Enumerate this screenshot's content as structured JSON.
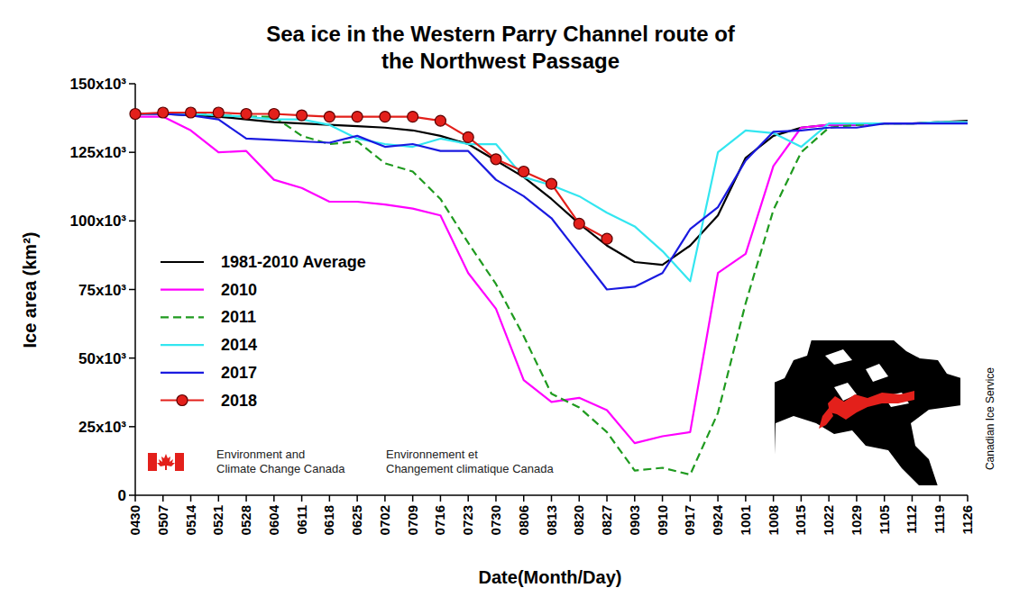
{
  "chart_data": {
    "type": "line",
    "title": "Sea ice in the Western Parry Channel route of\nthe Northwest Passage",
    "x_label": "Date(Month/Day)",
    "y_label": "Ice area (km²)",
    "categories": [
      "0430",
      "0507",
      "0514",
      "0521",
      "0528",
      "0604",
      "0611",
      "0618",
      "0625",
      "0702",
      "0709",
      "0716",
      "0723",
      "0730",
      "0806",
      "0813",
      "0820",
      "0827",
      "0903",
      "0910",
      "0917",
      "0924",
      "1001",
      "1008",
      "1015",
      "1022",
      "1029",
      "1105",
      "1112",
      "1119",
      "1126"
    ],
    "ylim": [
      0,
      150000
    ],
    "yticks": [
      0,
      {
        "value": 25000,
        "label": "25x10³"
      },
      {
        "value": 50000,
        "label": "50x10³"
      },
      {
        "value": 75000,
        "label": "75x10³"
      },
      {
        "value": 100000,
        "label": "100x10³"
      },
      {
        "value": 125000,
        "label": "125x10³"
      },
      {
        "value": 150000,
        "label": "150x10³"
      }
    ],
    "grid": false,
    "legend": "left",
    "annotations": [
      "Environment and\nClimate Change Canada",
      "Environnement et\nChangement climatique Canada",
      "Canadian Ice Service"
    ],
    "series": [
      {
        "name": "1981-2010 Average",
        "color": "#000000",
        "line_style": "solid",
        "marker": "none",
        "values": [
          139000,
          139000,
          138500,
          138000,
          137000,
          136000,
          135500,
          135000,
          134500,
          134000,
          133000,
          131000,
          128000,
          122000,
          116000,
          108000,
          99000,
          91000,
          85000,
          84000,
          91000,
          102000,
          123000,
          131000,
          134000,
          135000,
          135000,
          135500,
          135500,
          136000,
          136500
        ]
      },
      {
        "name": "2010",
        "color": "#ff00ff",
        "line_style": "solid",
        "marker": "none",
        "values": [
          138000,
          138000,
          133000,
          125000,
          125500,
          115000,
          112000,
          107000,
          107000,
          106000,
          104500,
          102000,
          81000,
          68000,
          42000,
          34000,
          35500,
          31000,
          19000,
          21500,
          23000,
          81000,
          88000,
          120000,
          134000,
          135000,
          135000,
          135500,
          135500,
          136000,
          136000
        ]
      },
      {
        "name": "2011",
        "color": "#1f9a1f",
        "line_style": "dashed",
        "marker": "none",
        "values": [
          139000,
          139000,
          139000,
          138500,
          138000,
          138000,
          131000,
          128000,
          129000,
          121000,
          118000,
          108000,
          92000,
          77000,
          58000,
          37000,
          32000,
          23000,
          9000,
          10000,
          7500,
          30000,
          70000,
          104000,
          125000,
          134000,
          135000,
          135500,
          135500,
          136000,
          136000
        ]
      },
      {
        "name": "2014",
        "color": "#33e6f0",
        "line_style": "solid",
        "marker": "none",
        "values": [
          139000,
          139000,
          139000,
          138500,
          138000,
          137000,
          137000,
          135000,
          130000,
          128000,
          127000,
          130000,
          128000,
          128000,
          116000,
          113000,
          109000,
          103000,
          98000,
          89000,
          78000,
          125000,
          133000,
          132000,
          127000,
          135500,
          135500,
          135500,
          135500,
          136000,
          136000
        ]
      },
      {
        "name": "2017",
        "color": "#1a1ae0",
        "line_style": "solid",
        "marker": "none",
        "values": [
          139000,
          139000,
          138500,
          137000,
          130000,
          129500,
          129000,
          128500,
          131000,
          127000,
          128000,
          125500,
          125500,
          115000,
          109000,
          101000,
          88000,
          75000,
          76000,
          81000,
          97000,
          105000,
          122000,
          132500,
          133000,
          134000,
          134000,
          135500,
          135500,
          135500,
          135500
        ]
      },
      {
        "name": "2018",
        "color": "#e3201b",
        "line_style": "solid",
        "marker": "circle",
        "values": [
          139000,
          139500,
          139500,
          139500,
          139000,
          139000,
          138500,
          138000,
          138000,
          138000,
          138000,
          136500,
          130500,
          122500,
          118000,
          113500,
          99000,
          93500,
          null,
          null,
          null,
          null,
          null,
          null,
          null,
          null,
          null,
          null,
          null,
          null,
          null
        ]
      }
    ]
  }
}
